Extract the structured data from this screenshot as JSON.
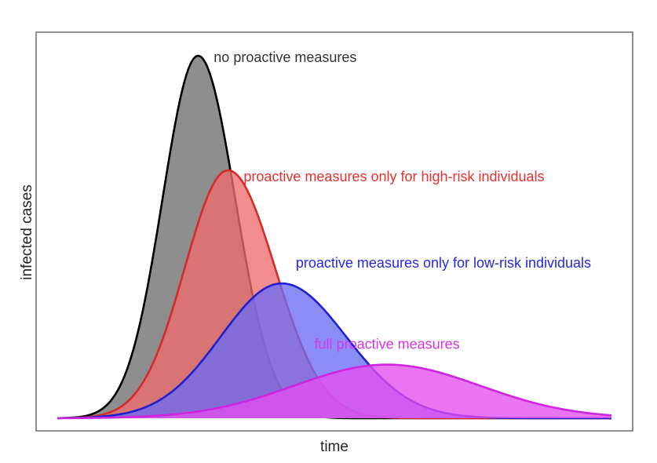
{
  "chart_data": {
    "type": "area",
    "title": "",
    "xlabel": "time",
    "ylabel": "infected cases",
    "xlim": [
      0,
      100
    ],
    "ylim": [
      0,
      100
    ],
    "grid": false,
    "legend": "none (labels placed next to each curve)",
    "curves": [
      {
        "name": "no proactive measures",
        "peak_x": 25.4,
        "peak_y": 100,
        "left_width": 6.4,
        "right_width": 6.7,
        "fill": "#6e6e6e",
        "stroke": "#000000",
        "label_color": "#333333"
      },
      {
        "name": "proactive measures only for high-risk individuals",
        "peak_x": 30.8,
        "peak_y": 68.4,
        "left_width": 7.8,
        "right_width": 8.5,
        "fill": "#f06b6b",
        "stroke": "#d42b2b",
        "label_color": "#e8302f"
      },
      {
        "name": "proactive measures only for low-risk individuals",
        "peak_x": 40.5,
        "peak_y": 37.2,
        "left_width": 11.0,
        "right_width": 11.6,
        "fill": "#6b6bf3",
        "stroke": "#1f1fd3",
        "label_color": "#2727dd"
      },
      {
        "name": "full proactive measures",
        "peak_x": 59.5,
        "peak_y": 14.8,
        "left_width": 16.8,
        "right_width": 16.8,
        "fill": "#e44ef0",
        "stroke": "#cf25de",
        "label_color": "#d533e5"
      }
    ]
  }
}
